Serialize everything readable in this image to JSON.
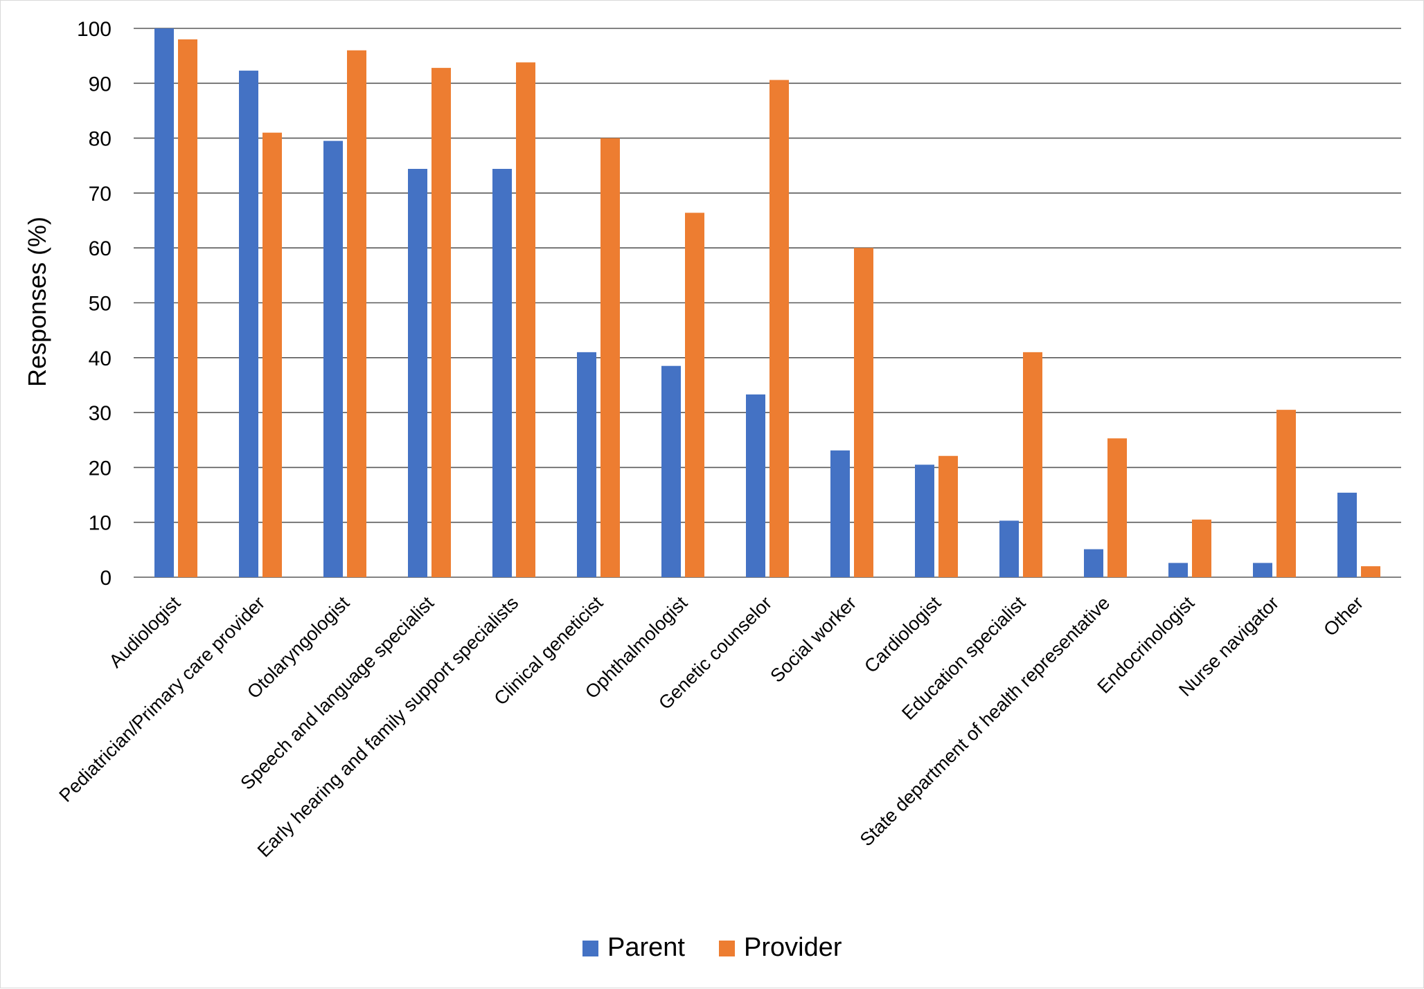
{
  "chart_data": {
    "type": "bar",
    "title": "",
    "xlabel": "",
    "ylabel": "Responses (%)",
    "ylim": [
      0,
      100
    ],
    "yticks": [
      0,
      10,
      20,
      30,
      40,
      50,
      60,
      70,
      80,
      90,
      100
    ],
    "grid": true,
    "legend_position": "bottom",
    "categories": [
      "Audiologist",
      "Pediatrician/Primary care provider",
      "Otolaryngologist",
      "Speech and language specialist",
      "Early hearing and family support specialists",
      "Clinical geneticist",
      "Ophthalmologist",
      "Genetic counselor",
      "Social worker",
      "Cardiologist",
      "Education specialist",
      "State department of health representative",
      "Endocrinologist",
      "Nurse navigator",
      "Other"
    ],
    "series": [
      {
        "name": "Parent",
        "color": "#4472C4",
        "values": [
          100,
          92.3,
          79.5,
          74.4,
          74.4,
          41.0,
          38.5,
          33.3,
          23.1,
          20.5,
          10.3,
          5.1,
          2.6,
          2.6,
          15.4
        ]
      },
      {
        "name": "Provider",
        "color": "#ED7D31",
        "values": [
          98.0,
          81.0,
          96.0,
          92.8,
          93.8,
          80.0,
          66.4,
          90.6,
          60.0,
          22.1,
          41.0,
          25.3,
          10.5,
          30.5,
          2.0
        ]
      }
    ]
  }
}
